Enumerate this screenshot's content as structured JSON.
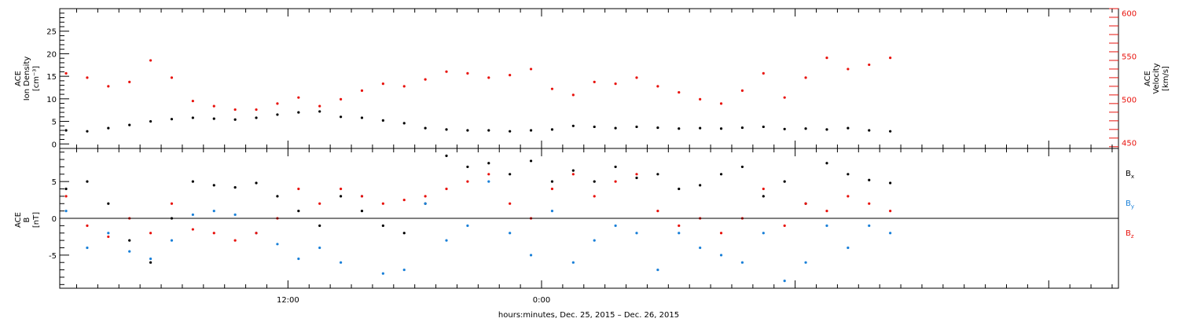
{
  "xlabel": "hours:minutes, Dec. 25, 2015 – Dec. 26, 2015",
  "x_tick_labels": [
    {
      "hour": 12,
      "label": "12:00"
    },
    {
      "hour": 24,
      "label": "0:00"
    }
  ],
  "colors": {
    "black": "#000000",
    "red": "#e8120c",
    "blue": "#1a80d8"
  },
  "chart_data": [
    {
      "type": "scatter",
      "panel": "top",
      "x_unit": "hours since Dec. 25, 2015 00:00",
      "xlim": [
        1.2,
        51.3
      ],
      "left_axis": {
        "ylabel_lines": [
          "ACE",
          "Ion Density",
          "[cm⁻³]"
        ],
        "ylim": [
          -1,
          30
        ],
        "ticks": [
          0,
          5,
          10,
          15,
          20,
          25
        ],
        "color": "#000000"
      },
      "right_axis": {
        "ylabel_lines": [
          "ACE",
          "Velocity",
          "[km/s]"
        ],
        "ylim": [
          443,
          605
        ],
        "ticks": [
          450,
          500,
          550,
          600
        ],
        "color": "#e8120c"
      },
      "series": [
        {
          "name": "Ion Density",
          "axis": "left",
          "color": "#000000",
          "x": [
            1.5,
            2.5,
            3.5,
            4.5,
            5.5,
            6.5,
            7.5,
            8.5,
            9.5,
            10.5,
            11.5,
            12.5,
            13.5,
            14.5,
            15.5,
            16.5,
            17.5,
            18.5,
            19.5,
            20.5,
            21.5,
            22.5,
            23.5,
            24.5,
            25.5,
            26.5,
            27.5,
            28.5,
            29.5,
            30.5,
            31.5,
            32.5,
            33.5,
            34.5,
            35.5,
            36.5,
            37.5,
            38.5,
            39.5,
            40.5
          ],
          "y": [
            3.0,
            2.8,
            3.5,
            4.2,
            5.0,
            5.5,
            5.8,
            5.6,
            5.4,
            5.8,
            6.5,
            7.0,
            7.2,
            6.0,
            5.8,
            5.2,
            4.6,
            3.5,
            3.2,
            3.0,
            3.0,
            2.8,
            3.0,
            3.2,
            4.0,
            3.8,
            3.5,
            3.8,
            3.6,
            3.4,
            3.5,
            3.4,
            3.6,
            3.8,
            3.3,
            3.4,
            3.2,
            3.5,
            3.0,
            2.8
          ]
        },
        {
          "name": "Velocity",
          "axis": "right",
          "color": "#e8120c",
          "x": [
            1.5,
            2.5,
            3.5,
            4.5,
            5.5,
            6.5,
            7.5,
            8.5,
            9.5,
            10.5,
            11.5,
            12.5,
            13.5,
            14.5,
            15.5,
            16.5,
            17.5,
            18.5,
            19.5,
            20.5,
            21.5,
            22.5,
            23.5,
            24.5,
            25.5,
            26.5,
            27.5,
            28.5,
            29.5,
            30.5,
            31.5,
            32.5,
            33.5,
            34.5,
            35.5,
            36.5,
            37.5,
            38.5,
            39.5,
            40.5
          ],
          "y": [
            530,
            525,
            515,
            520,
            545,
            525,
            498,
            492,
            488,
            488,
            495,
            502,
            492,
            500,
            510,
            518,
            515,
            523,
            532,
            530,
            525,
            528,
            535,
            512,
            505,
            520,
            518,
            525,
            515,
            508,
            500,
            495,
            510,
            530,
            502,
            525,
            548,
            535,
            540,
            548
          ]
        }
      ]
    },
    {
      "type": "scatter",
      "panel": "bottom",
      "x_unit": "hours since Dec. 25, 2015 00:00",
      "xlim": [
        1.2,
        51.3
      ],
      "ylabel_lines": [
        "ACE",
        "B",
        "[nT]"
      ],
      "ylim": [
        -9.5,
        9.5
      ],
      "ticks": [
        -5,
        0,
        5
      ],
      "zero_line": true,
      "legend_placement": "right",
      "series": [
        {
          "name": "B",
          "subscript": "x",
          "color": "#000000",
          "x": [
            1.5,
            2.5,
            3.5,
            4.5,
            5.5,
            6.5,
            7.5,
            8.5,
            9.5,
            10.5,
            11.5,
            12.5,
            13.5,
            14.5,
            15.5,
            16.5,
            17.5,
            18.5,
            19.5,
            20.5,
            21.5,
            22.5,
            23.5,
            24.5,
            25.5,
            26.5,
            27.5,
            28.5,
            29.5,
            30.5,
            31.5,
            32.5,
            33.5,
            34.5,
            35.5,
            36.5,
            37.5,
            38.5,
            39.5,
            40.5
          ],
          "y": [
            4.0,
            5.0,
            2.0,
            -3.0,
            -6.0,
            0.0,
            5.0,
            4.5,
            4.2,
            4.8,
            3.0,
            1.0,
            -1.0,
            3.0,
            1.0,
            -1.0,
            -2.0,
            2.0,
            8.5,
            7.0,
            7.5,
            6.0,
            7.8,
            5.0,
            6.5,
            5.0,
            7.0,
            5.5,
            6.0,
            4.0,
            4.5,
            6.0,
            7.0,
            3.0,
            5.0,
            2.0,
            7.5,
            6.0,
            5.2,
            4.8
          ]
        },
        {
          "name": "B",
          "subscript": "y",
          "color": "#1a80d8",
          "x": [
            1.5,
            2.5,
            3.5,
            4.5,
            5.5,
            6.5,
            7.5,
            8.5,
            9.5,
            10.5,
            11.5,
            12.5,
            13.5,
            14.5,
            15.5,
            16.5,
            17.5,
            18.5,
            19.5,
            20.5,
            21.5,
            22.5,
            23.5,
            24.5,
            25.5,
            26.5,
            27.5,
            28.5,
            29.5,
            30.5,
            31.5,
            32.5,
            33.5,
            34.5,
            35.5,
            36.5,
            37.5,
            38.5,
            39.5,
            40.5
          ],
          "y": [
            1.0,
            -4.0,
            -2.0,
            -4.5,
            -5.5,
            -3.0,
            0.5,
            1.0,
            0.5,
            -2.0,
            -3.5,
            -5.5,
            -4.0,
            -6.0,
            3.0,
            -7.5,
            -7.0,
            2.0,
            -3.0,
            -1.0,
            5.0,
            -2.0,
            -5.0,
            1.0,
            -6.0,
            -3.0,
            -1.0,
            -2.0,
            -7.0,
            -2.0,
            -4.0,
            -5.0,
            -6.0,
            -2.0,
            -8.5,
            -6.0,
            -1.0,
            -4.0,
            -1.0,
            -2.0
          ]
        },
        {
          "name": "B",
          "subscript": "z",
          "color": "#e8120c",
          "x": [
            1.5,
            2.5,
            3.5,
            4.5,
            5.5,
            6.5,
            7.5,
            8.5,
            9.5,
            10.5,
            11.5,
            12.5,
            13.5,
            14.5,
            15.5,
            16.5,
            17.5,
            18.5,
            19.5,
            20.5,
            21.5,
            22.5,
            23.5,
            24.5,
            25.5,
            26.5,
            27.5,
            28.5,
            29.5,
            30.5,
            31.5,
            32.5,
            33.5,
            34.5,
            35.5,
            36.5,
            37.5,
            38.5,
            39.5,
            40.5
          ],
          "y": [
            3.0,
            -1.0,
            -2.5,
            0.0,
            -2.0,
            2.0,
            -1.5,
            -2.0,
            -3.0,
            -2.0,
            0.0,
            4.0,
            2.0,
            4.0,
            3.0,
            2.0,
            2.5,
            3.0,
            4.0,
            5.0,
            6.0,
            2.0,
            0.0,
            4.0,
            6.0,
            3.0,
            5.0,
            6.0,
            1.0,
            -1.0,
            0.0,
            -2.0,
            0.0,
            4.0,
            -1.0,
            2.0,
            1.0,
            3.0,
            2.0,
            1.0
          ]
        }
      ]
    }
  ]
}
